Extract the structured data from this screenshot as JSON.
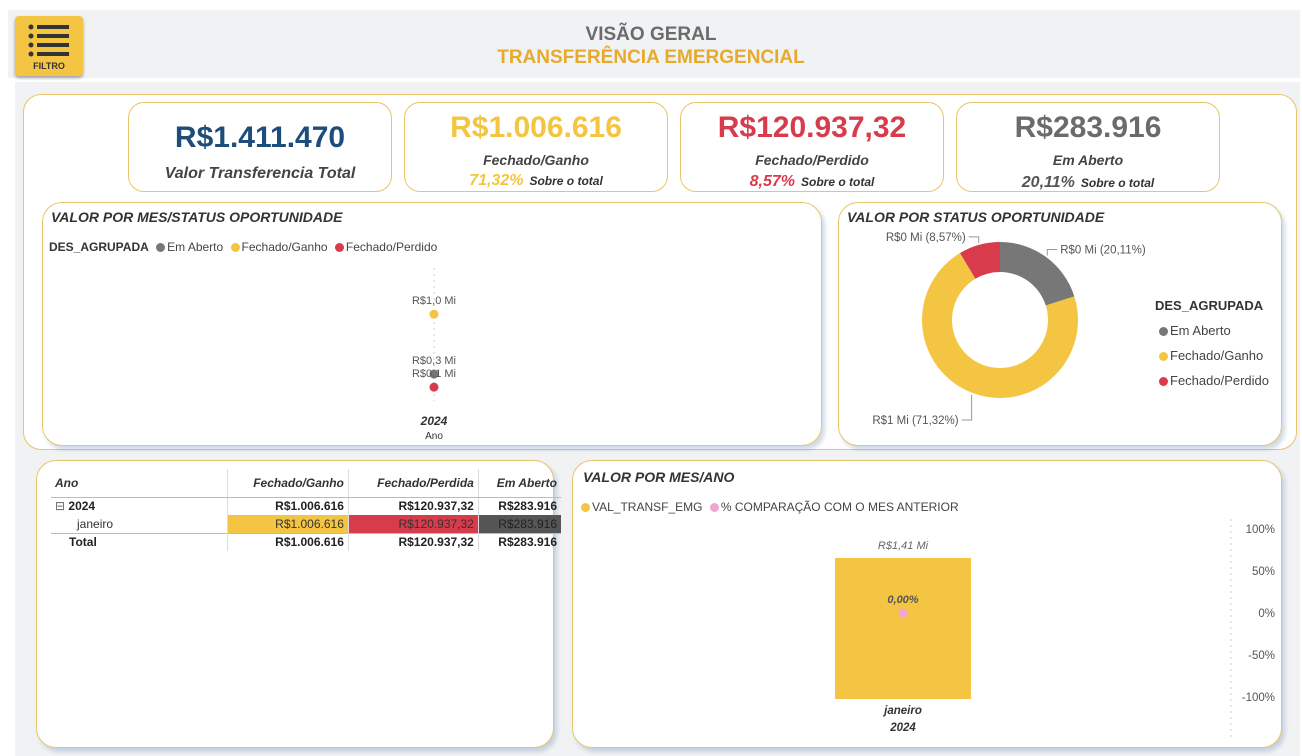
{
  "header": {
    "title": "VISÃO GERAL",
    "subtitle": "TRANSFERÊNCIA EMERGENCIAL",
    "filter_label": "FILTRO"
  },
  "colors": {
    "em_aberto": "#777777",
    "fechado_ganho": "#f4c542",
    "fechado_perdido": "#d83b4b",
    "comparacao": "#f0a6d2",
    "navy": "#1e4d7b"
  },
  "kpis": [
    {
      "value": "R$1.411.470",
      "label": "Valor Transferencia Total",
      "pct": "",
      "pct_text": ""
    },
    {
      "value": "R$1.006.616",
      "label": "Fechado/Ganho",
      "pct": "71,32%",
      "pct_text": "Sobre o total"
    },
    {
      "value": "R$120.937,32",
      "label": "Fechado/Perdido",
      "pct": "8,57%",
      "pct_text": "Sobre o total"
    },
    {
      "value": "R$283.916",
      "label": "Em Aberto",
      "pct": "20,11%",
      "pct_text": "Sobre o total"
    }
  ],
  "visual_mes_status": {
    "title": "VALOR POR MES/STATUS OPORTUNIDADE",
    "legend_title": "DES_AGRUPADA",
    "legend": [
      "Em Aberto",
      "Fechado/Ganho",
      "Fechado/Perdido"
    ],
    "x_category": "2024",
    "x_axis_label": "Ano"
  },
  "visual_status": {
    "title": "VALOR POR STATUS OPORTUNIDADE",
    "legend_title": "DES_AGRUPADA",
    "legend": [
      "Em Aberto",
      "Fechado/Ganho",
      "Fechado/Perdido"
    ]
  },
  "matrix": {
    "headers": [
      "Ano",
      "Fechado/Ganho",
      "Fechado/Perdida",
      "Em Aberto"
    ],
    "expand_icon": "⊟",
    "rows": [
      {
        "label": "2024",
        "values": [
          "R$1.006.616",
          "R$120.937,32",
          "R$283.916"
        ]
      },
      {
        "label": "janeiro",
        "values": [
          "R$1.006.616",
          "R$120.937,32",
          "R$283.916"
        ]
      },
      {
        "label": "Total",
        "values": [
          "R$1.006.616",
          "R$120.937,32",
          "R$283.916"
        ]
      }
    ]
  },
  "visual_mes_ano": {
    "title": "VALOR POR MES/ANO",
    "legend": [
      "VAL_TRANSF_EMG",
      "% COMPARAÇÃO COM O MES ANTERIOR"
    ]
  },
  "chart_data": [
    {
      "type": "scatter",
      "title": "VALOR POR MES/STATUS OPORTUNIDADE",
      "xlabel": "Ano",
      "categories": [
        "2024"
      ],
      "series": [
        {
          "name": "Em Aberto",
          "values": [
            0.28
          ],
          "label": "R$0,3 Mi"
        },
        {
          "name": "Fechado/Ganho",
          "values": [
            1.01
          ],
          "label": "R$1,0 Mi"
        },
        {
          "name": "Fechado/Perdido",
          "values": [
            0.12
          ],
          "label": "R$0,1 Mi"
        }
      ]
    },
    {
      "type": "pie",
      "title": "VALOR POR STATUS OPORTUNIDADE",
      "legend_title": "DES_AGRUPADA",
      "slices": [
        {
          "name": "Em Aberto",
          "value": 20.11,
          "label": "R$0 Mi (20,11%)"
        },
        {
          "name": "Fechado/Ganho",
          "value": 71.32,
          "label": "R$1 Mi (71,32%)"
        },
        {
          "name": "Fechado/Perdido",
          "value": 8.57,
          "label": "R$0 Mi (8,57%)"
        }
      ]
    },
    {
      "type": "bar",
      "title": "VALOR POR MES/ANO",
      "categories": [
        "janeiro 2024"
      ],
      "category_lines": [
        "janeiro",
        "2024"
      ],
      "series": [
        {
          "name": "VAL_TRANSF_EMG",
          "values": [
            1.41
          ],
          "label": "R$1,41 Mi"
        },
        {
          "name": "% COMPARAÇÃO COM O MES ANTERIOR",
          "values": [
            0
          ],
          "label": "0,00%"
        }
      ],
      "y2_ticks": [
        "100%",
        "50%",
        "0%",
        "-50%",
        "-100%"
      ],
      "y2lim": [
        -100,
        100
      ]
    }
  ]
}
